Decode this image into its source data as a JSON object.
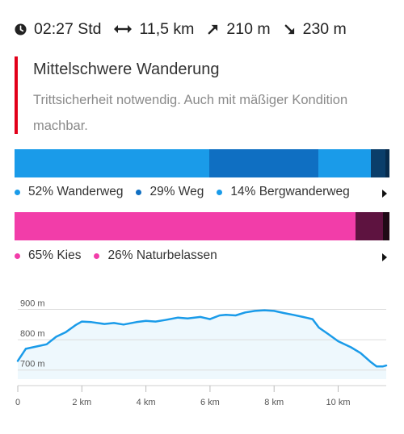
{
  "stats": {
    "duration": "02:27 Std",
    "distance": "11,5 km",
    "ascent": "210 m",
    "descent": "230 m"
  },
  "difficulty": {
    "title": "Mittelschwere Wanderung",
    "description": "Trittsicherheit notwendig. Auch mit mäßiger Kondition machbar.",
    "color": "#e2001a"
  },
  "way_types": {
    "segments": [
      {
        "label": "52% Wanderweg",
        "percent": 52,
        "color": "#1a9be9"
      },
      {
        "label": "29% Weg",
        "percent": 29,
        "color": "#0f6fc2"
      },
      {
        "label": "14% Bergwanderweg",
        "percent": 14,
        "color": "#1a9be9"
      }
    ],
    "remainder_colors": [
      "#0b3e6a",
      "#082b4c"
    ]
  },
  "surfaces": {
    "segments": [
      {
        "label": "65% Kies",
        "percent": 65,
        "color": "#f23da9"
      },
      {
        "label": "26% Naturbelassen",
        "percent": 26,
        "color": "#f23da9"
      }
    ],
    "remainder_colors": [
      "#5e1340",
      "#1f0a16"
    ]
  },
  "chart_data": {
    "type": "area",
    "x_unit": "km",
    "y_unit": "m",
    "xlim": [
      0,
      11.5
    ],
    "ylim": [
      670,
      920
    ],
    "x_ticks": [
      0,
      2,
      4,
      6,
      8,
      10
    ],
    "x_tick_labels": [
      "0",
      "2 km",
      "4 km",
      "6 km",
      "8 km",
      "10 km"
    ],
    "y_ticks": [
      700,
      800,
      900
    ],
    "y_tick_labels": [
      "700 m",
      "800 m",
      "900 m"
    ],
    "grid": true,
    "line_color": "#1a9be9",
    "fill_color": "#eef8fd",
    "x": [
      0,
      0.25,
      0.6,
      0.9,
      1.2,
      1.5,
      1.8,
      2.0,
      2.3,
      2.7,
      3.0,
      3.3,
      3.7,
      4.0,
      4.3,
      4.6,
      5.0,
      5.3,
      5.7,
      6.0,
      6.3,
      6.5,
      6.8,
      7.1,
      7.4,
      7.7,
      8.0,
      8.3,
      8.6,
      8.9,
      9.2,
      9.4,
      9.7,
      10.0,
      10.4,
      10.7,
      11.0,
      11.2,
      11.4,
      11.5
    ],
    "y": [
      730,
      770,
      778,
      785,
      810,
      825,
      848,
      860,
      858,
      852,
      855,
      850,
      858,
      862,
      860,
      865,
      873,
      870,
      875,
      868,
      880,
      882,
      880,
      890,
      895,
      897,
      895,
      888,
      882,
      875,
      868,
      840,
      818,
      795,
      775,
      756,
      728,
      712,
      712,
      715
    ]
  }
}
